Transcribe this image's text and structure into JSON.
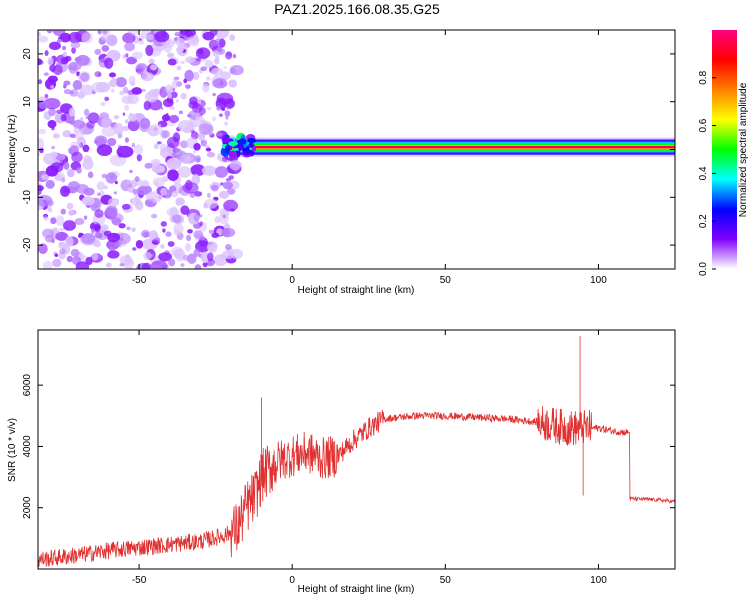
{
  "title": "PAZ1.2025.166.08.35.G25",
  "chart_data": [
    {
      "type": "heatmap",
      "xlabel": "Height of straight line (km)",
      "ylabel": "Frequency (Hz)",
      "xlim": [
        -83,
        125
      ],
      "ylim": [
        -25,
        25
      ],
      "x_ticks": [
        -50,
        0,
        50,
        100
      ],
      "y_ticks": [
        -20,
        -10,
        0,
        10,
        20
      ],
      "colorbar": {
        "label": "Normalized spectral amplitude",
        "range": [
          0,
          1
        ],
        "ticks": [
          "0.0",
          "0.2",
          "0.4",
          "0.6",
          "0.8"
        ],
        "colormap": [
          "#ffffff",
          "#8000ff",
          "#0000ff",
          "#00ffff",
          "#00ff00",
          "#ffff00",
          "#ff8000",
          "#ff0000",
          "#ff0080"
        ]
      },
      "regions": [
        {
          "x_range": [
            -83,
            -20
          ],
          "freq_range": [
            -25,
            25
          ],
          "description_level": 0.1
        },
        {
          "x_range": [
            -20,
            125
          ],
          "freq_range": [
            -2,
            2
          ],
          "center_freq": 0.5,
          "peak_level": 0.95
        }
      ]
    },
    {
      "type": "line",
      "xlabel": "Height of straight line (km)",
      "ylabel": "SNR (10 * v/v)",
      "xlim": [
        -83,
        125
      ],
      "ylim": [
        0,
        7800
      ],
      "x_ticks": [
        -50,
        0,
        50,
        100
      ],
      "y_ticks": [
        2000,
        4000,
        6000
      ],
      "color": "#e03030",
      "points": [
        [
          -83,
          300
        ],
        [
          -70,
          450
        ],
        [
          -60,
          600
        ],
        [
          -50,
          700
        ],
        [
          -40,
          800
        ],
        [
          -30,
          900
        ],
        [
          -22,
          1100
        ],
        [
          -18,
          1300
        ],
        [
          -15,
          2000
        ],
        [
          -12,
          2400
        ],
        [
          -10,
          3000
        ],
        [
          -8,
          3200
        ],
        [
          -5,
          3500
        ],
        [
          0,
          3700
        ],
        [
          5,
          3800
        ],
        [
          10,
          3600
        ],
        [
          15,
          3700
        ],
        [
          20,
          4200
        ],
        [
          25,
          4600
        ],
        [
          30,
          4900
        ],
        [
          40,
          5000
        ],
        [
          50,
          5000
        ],
        [
          60,
          4950
        ],
        [
          70,
          4900
        ],
        [
          80,
          4800
        ],
        [
          85,
          4700
        ],
        [
          90,
          4600
        ],
        [
          95,
          4600
        ],
        [
          100,
          4600
        ],
        [
          105,
          4500
        ],
        [
          110,
          4450
        ],
        [
          110,
          2300
        ],
        [
          115,
          2280
        ],
        [
          120,
          2250
        ],
        [
          125,
          2200
        ]
      ],
      "peaks": [
        [
          -10,
          5600
        ],
        [
          94,
          7600
        ],
        [
          95,
          2400
        ]
      ]
    }
  ]
}
